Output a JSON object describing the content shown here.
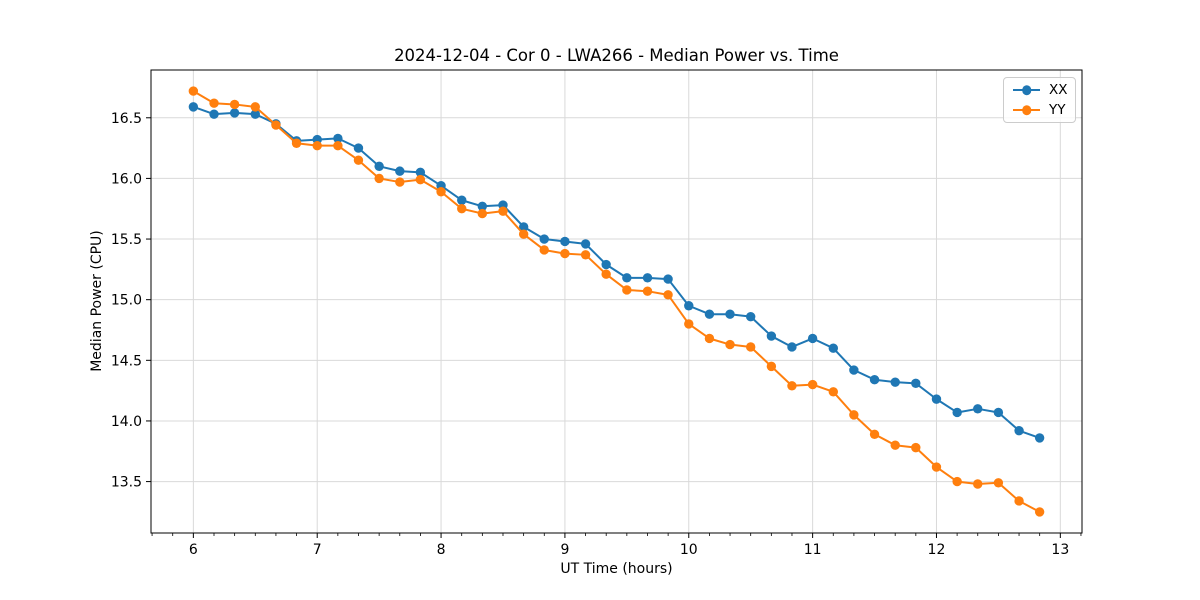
{
  "chart_data": {
    "type": "line",
    "title": "2024-12-04 - Cor 0 - LWA266 - Median Power vs. Time",
    "xlabel": "UT Time (hours)",
    "ylabel": "Median Power (CPU)",
    "x": [
      6.0,
      6.167,
      6.333,
      6.5,
      6.667,
      6.833,
      7.0,
      7.167,
      7.333,
      7.5,
      7.667,
      7.833,
      8.0,
      8.167,
      8.333,
      8.5,
      8.667,
      8.833,
      9.0,
      9.167,
      9.333,
      9.5,
      9.667,
      9.833,
      10.0,
      10.167,
      10.333,
      10.5,
      10.667,
      10.833,
      11.0,
      11.167,
      11.333,
      11.5,
      11.667,
      11.833,
      12.0,
      12.167,
      12.333,
      12.5,
      12.667,
      12.833
    ],
    "series": [
      {
        "name": "XX",
        "color": "#1f77b4",
        "values": [
          16.59,
          16.53,
          16.54,
          16.53,
          16.45,
          16.31,
          16.32,
          16.33,
          16.25,
          16.1,
          16.06,
          16.05,
          15.94,
          15.82,
          15.77,
          15.78,
          15.6,
          15.5,
          15.48,
          15.46,
          15.29,
          15.18,
          15.18,
          15.17,
          14.95,
          14.88,
          14.88,
          14.86,
          14.7,
          14.61,
          14.68,
          14.6,
          14.42,
          14.34,
          14.32,
          14.31,
          14.18,
          14.07,
          14.1,
          14.07,
          13.92,
          13.86
        ]
      },
      {
        "name": "YY",
        "color": "#ff7f0e",
        "values": [
          16.72,
          16.62,
          16.61,
          16.59,
          16.44,
          16.29,
          16.27,
          16.27,
          16.15,
          16.0,
          15.97,
          15.99,
          15.89,
          15.75,
          15.71,
          15.73,
          15.54,
          15.41,
          15.38,
          15.37,
          15.21,
          15.08,
          15.07,
          15.04,
          14.8,
          14.68,
          14.63,
          14.61,
          14.45,
          14.29,
          14.3,
          14.24,
          14.05,
          13.89,
          13.8,
          13.78,
          13.62,
          13.5,
          13.48,
          13.49,
          13.34,
          13.25
        ]
      }
    ],
    "xlim": [
      5.658,
      13.175
    ],
    "ylim": [
      13.076,
      16.894
    ],
    "xticks": [
      6,
      7,
      8,
      9,
      10,
      11,
      12,
      13
    ],
    "xtick_labels": [
      "6",
      "7",
      "8",
      "9",
      "10",
      "11",
      "12",
      "13"
    ],
    "yticks": [
      13.5,
      14.0,
      14.5,
      15.0,
      15.5,
      16.0,
      16.5
    ],
    "ytick_labels": [
      "13.5",
      "14.0",
      "14.5",
      "15.0",
      "15.5",
      "16.0",
      "16.5"
    ],
    "x_minor_step": 0.1666667,
    "grid": "major",
    "grid_color": "#d9d9d9",
    "axis_color": "#000000",
    "background": "#ffffff",
    "legend_position": "upper right",
    "marker": "o"
  }
}
